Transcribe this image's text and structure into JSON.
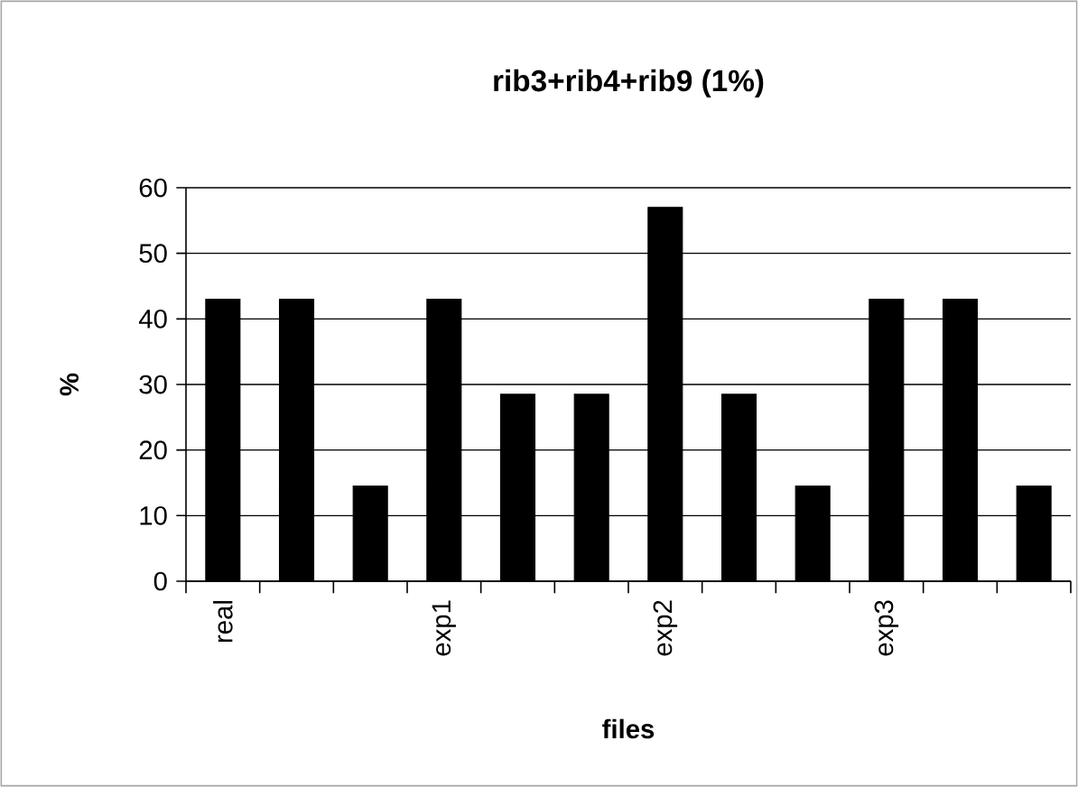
{
  "chart_data": {
    "type": "bar",
    "title": "rib3+rib4+rib9 (1%)",
    "xlabel": "files",
    "ylabel": "%",
    "categories": [
      "real",
      null,
      null,
      "exp1",
      null,
      null,
      "exp2",
      null,
      null,
      "exp3",
      null,
      null
    ],
    "values": [
      43,
      43,
      14.5,
      43,
      28.5,
      28.5,
      57,
      28.5,
      14.5,
      43,
      43,
      14.5
    ],
    "color": "#000000",
    "ylim": [
      0,
      60
    ],
    "yticks": [
      0,
      10,
      20,
      30,
      40,
      50,
      60
    ],
    "grid": "y"
  }
}
